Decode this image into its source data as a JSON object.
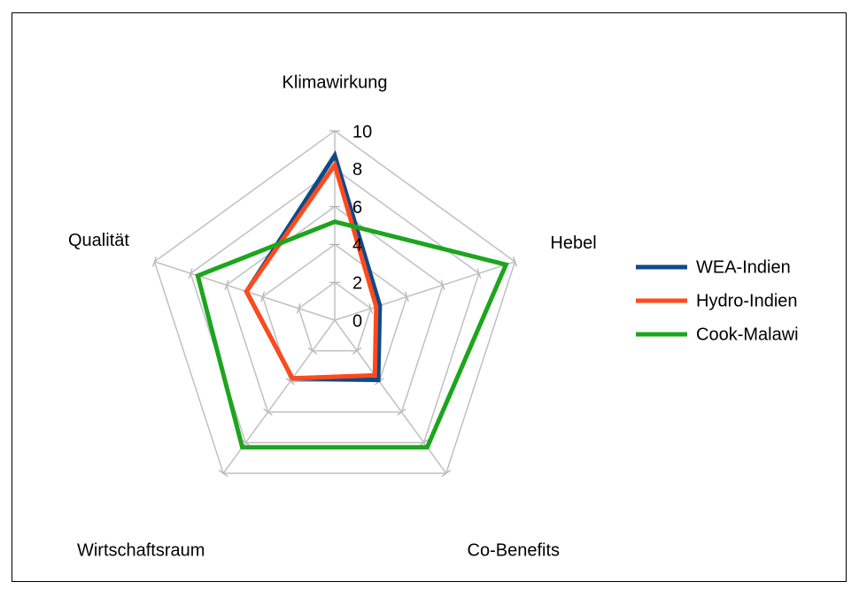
{
  "chart_data": {
    "type": "radar",
    "title": "",
    "axes": [
      "Klimawirkung",
      "Hebel",
      "Co-Benefits",
      "Wirtschaftsraum",
      "Qualität"
    ],
    "rlim": [
      0,
      10
    ],
    "ticks": [
      0,
      2,
      4,
      6,
      8,
      10
    ],
    "grid": true,
    "legend_position": "right",
    "series": [
      {
        "name": "WEA-Indien",
        "color": "#0d4a8a",
        "values": [
          8.7,
          2.5,
          3.9,
          3.8,
          4.9
        ]
      },
      {
        "name": "Hydro-Indien",
        "color": "#ff4a1c",
        "values": [
          8.2,
          2.3,
          3.6,
          3.8,
          4.9
        ]
      },
      {
        "name": "Cook-Malawi",
        "color": "#1da51d",
        "values": [
          5.2,
          9.5,
          8.3,
          8.3,
          7.6
        ]
      }
    ]
  }
}
